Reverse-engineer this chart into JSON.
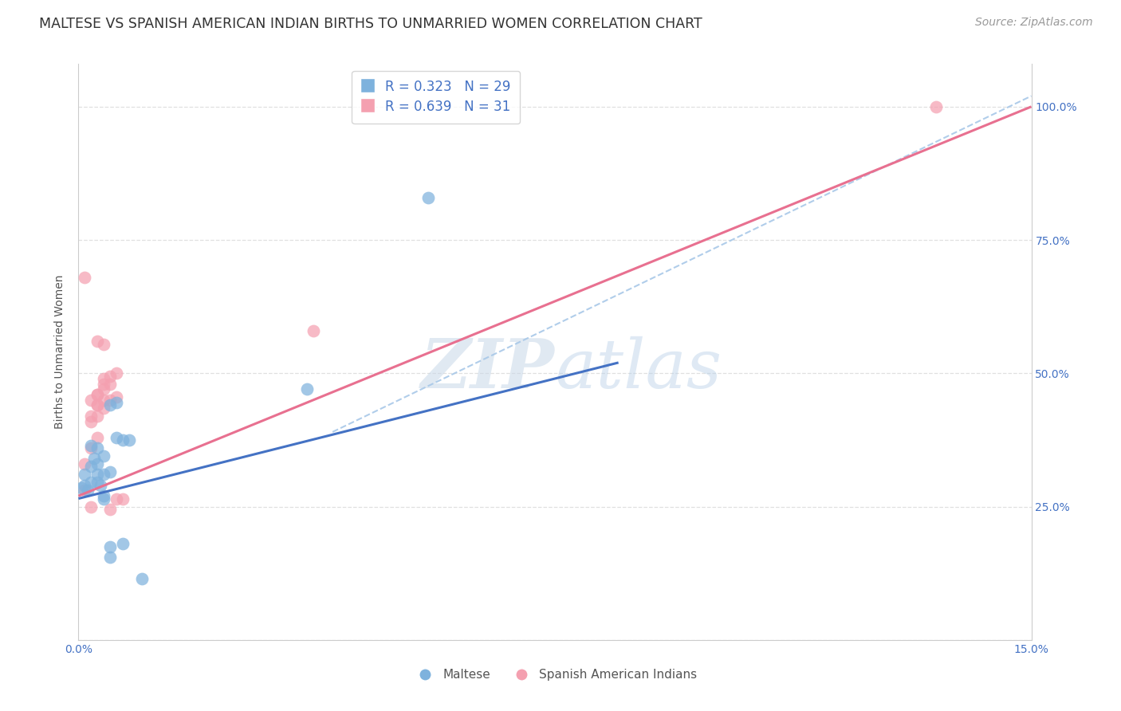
{
  "title": "MALTESE VS SPANISH AMERICAN INDIAN BIRTHS TO UNMARRIED WOMEN CORRELATION CHART",
  "source": "Source: ZipAtlas.com",
  "ylabel": "Births to Unmarried Women",
  "xlim": [
    0.0,
    0.15
  ],
  "ylim": [
    0.0,
    1.08
  ],
  "blue_color": "#7EB2DD",
  "pink_color": "#F4A0B0",
  "blue_line_color": "#4472C4",
  "pink_line_color": "#E87090",
  "dashed_line_color": "#A8C8E8",
  "background_color": "#FFFFFF",
  "grid_color": "#DDDDDD",
  "legend_R_blue": "0.323",
  "legend_N_blue": "29",
  "legend_R_pink": "0.639",
  "legend_N_pink": "31",
  "legend_label_blue": "Maltese",
  "legend_label_pink": "Spanish American Indians",
  "watermark_zip": "ZIP",
  "watermark_atlas": "atlas",
  "maltese_x": [
    0.0005,
    0.001,
    0.001,
    0.0015,
    0.002,
    0.002,
    0.002,
    0.0025,
    0.003,
    0.003,
    0.003,
    0.003,
    0.0035,
    0.004,
    0.004,
    0.004,
    0.004,
    0.005,
    0.005,
    0.005,
    0.005,
    0.006,
    0.006,
    0.007,
    0.007,
    0.008,
    0.01,
    0.036,
    0.055
  ],
  "maltese_y": [
    0.285,
    0.29,
    0.31,
    0.28,
    0.295,
    0.325,
    0.365,
    0.34,
    0.295,
    0.31,
    0.33,
    0.36,
    0.29,
    0.265,
    0.27,
    0.31,
    0.345,
    0.155,
    0.175,
    0.315,
    0.44,
    0.38,
    0.445,
    0.18,
    0.375,
    0.375,
    0.115,
    0.47,
    0.83
  ],
  "spanish_ai_x": [
    0.001,
    0.001,
    0.001,
    0.002,
    0.002,
    0.002,
    0.002,
    0.003,
    0.003,
    0.003,
    0.003,
    0.004,
    0.004,
    0.004,
    0.004,
    0.005,
    0.005,
    0.005,
    0.005,
    0.006,
    0.006,
    0.006,
    0.007,
    0.003,
    0.004,
    0.002,
    0.003,
    0.004,
    0.003,
    0.037,
    0.135
  ],
  "spanish_ai_y": [
    0.28,
    0.33,
    0.68,
    0.25,
    0.36,
    0.41,
    0.45,
    0.38,
    0.42,
    0.44,
    0.46,
    0.435,
    0.45,
    0.47,
    0.48,
    0.245,
    0.45,
    0.48,
    0.495,
    0.265,
    0.455,
    0.5,
    0.265,
    0.56,
    0.555,
    0.42,
    0.44,
    0.49,
    0.46,
    0.58,
    1.0
  ],
  "blue_line_x0": 0.0,
  "blue_line_y0": 0.265,
  "blue_line_x1": 0.085,
  "blue_line_y1": 0.52,
  "pink_line_x0": 0.0,
  "pink_line_y0": 0.27,
  "pink_line_x1": 0.15,
  "pink_line_y1": 1.0,
  "dash_line_x0": 0.04,
  "dash_line_y0": 0.39,
  "dash_line_x1": 0.15,
  "dash_line_y1": 1.02,
  "ytick_positions": [
    0.0,
    0.25,
    0.5,
    0.75,
    1.0
  ],
  "ytick_labels_right": [
    "",
    "25.0%",
    "50.0%",
    "75.0%",
    "100.0%"
  ],
  "xtick_positions": [
    0.0,
    0.03,
    0.06,
    0.09,
    0.12,
    0.15
  ],
  "xtick_labels": [
    "0.0%",
    "",
    "",
    "",
    "",
    "15.0%"
  ],
  "title_fontsize": 12.5,
  "axis_label_fontsize": 10,
  "tick_fontsize": 10,
  "legend_fontsize": 12,
  "source_fontsize": 10
}
